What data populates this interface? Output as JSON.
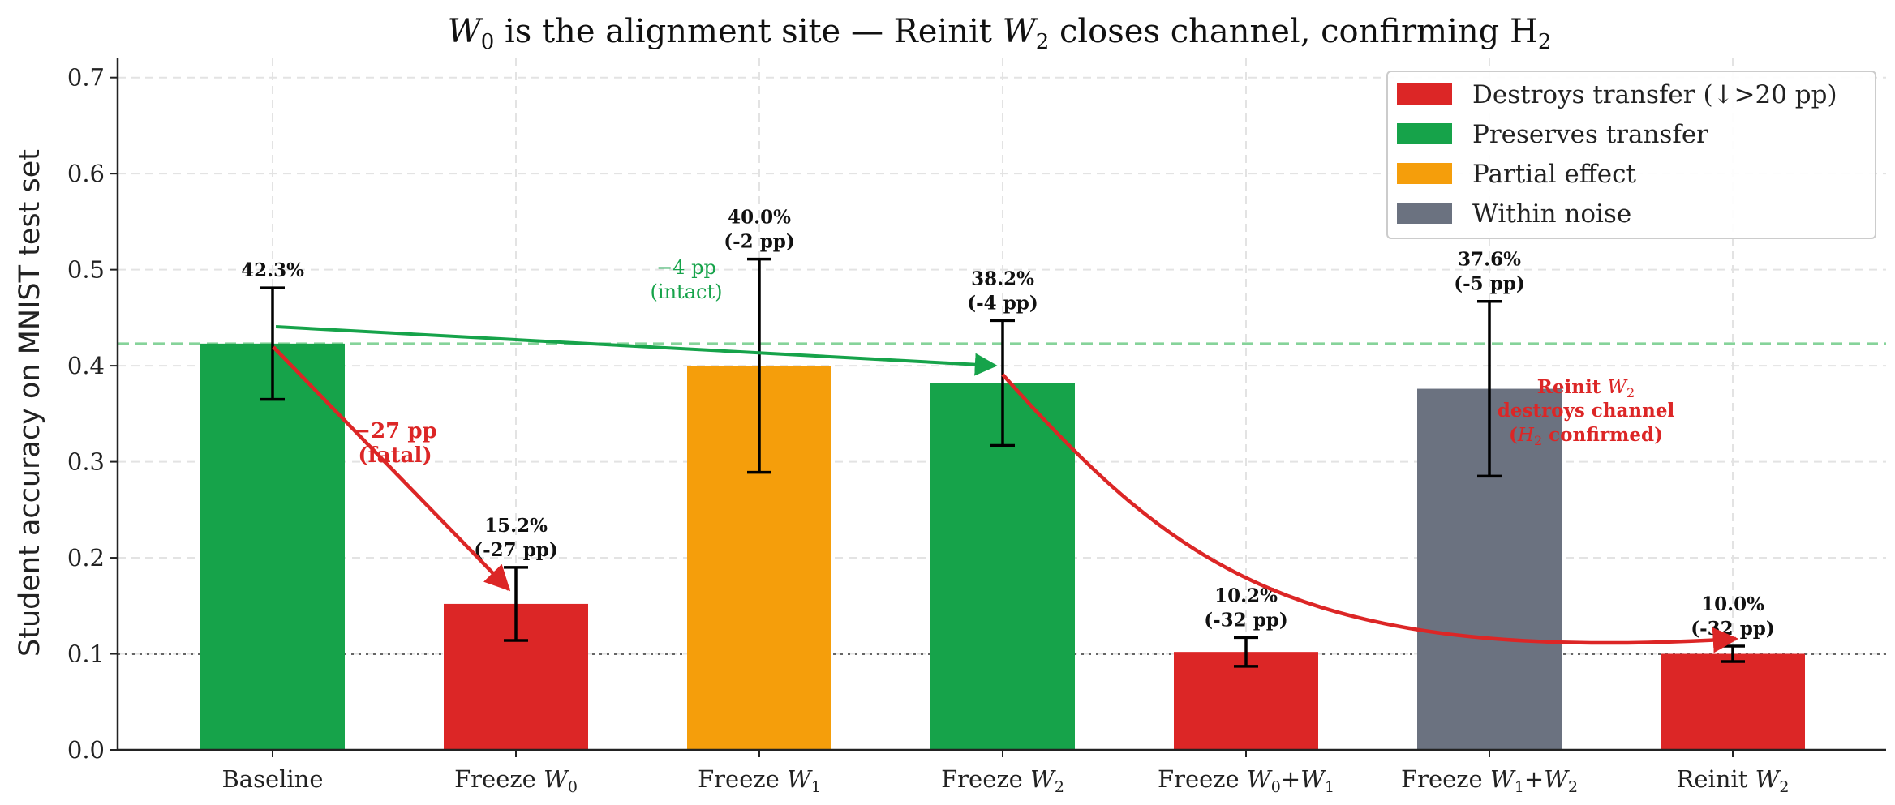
{
  "chart_data": {
    "type": "bar",
    "title_parts": [
      "W",
      "0",
      " is the alignment site — Reinit ",
      "W",
      "2",
      " closes channel, confirming H",
      "2"
    ],
    "ylabel": "Student accuracy on MNIST test set",
    "xlabel": "",
    "ylim": [
      0,
      0.72
    ],
    "yticks": [
      "0.0",
      "0.1",
      "0.2",
      "0.3",
      "0.4",
      "0.5",
      "0.6",
      "0.7"
    ],
    "grid": true,
    "legend_position": "top-right",
    "categories": [
      {
        "prefix": "Baseline",
        "var": "",
        "sub": "",
        "mid": "",
        "var2": "",
        "sub2": ""
      },
      {
        "prefix": "Freeze ",
        "var": "W",
        "sub": "0",
        "mid": "",
        "var2": "",
        "sub2": ""
      },
      {
        "prefix": "Freeze ",
        "var": "W",
        "sub": "1",
        "mid": "",
        "var2": "",
        "sub2": ""
      },
      {
        "prefix": "Freeze ",
        "var": "W",
        "sub": "2",
        "mid": "",
        "var2": "",
        "sub2": ""
      },
      {
        "prefix": "Freeze ",
        "var": "W",
        "sub": "0",
        "mid": "+",
        "var2": "W",
        "sub2": "1"
      },
      {
        "prefix": "Freeze ",
        "var": "W",
        "sub": "1",
        "mid": "+",
        "var2": "W",
        "sub2": "2"
      },
      {
        "prefix": "Reinit ",
        "var": "W",
        "sub": "2",
        "mid": "",
        "var2": "",
        "sub2": ""
      }
    ],
    "values": [
      0.423,
      0.152,
      0.4,
      0.382,
      0.102,
      0.376,
      0.1
    ],
    "errors": [
      0.058,
      0.038,
      0.111,
      0.065,
      0.015,
      0.091,
      0.008
    ],
    "bar_categories": [
      "preserves",
      "destroys",
      "partial",
      "preserves",
      "destroys",
      "noise",
      "destroys"
    ],
    "bar_labels": [
      [
        "42.3%"
      ],
      [
        "15.2%",
        "(-27 pp)"
      ],
      [
        "40.0%",
        "(-2 pp)"
      ],
      [
        "38.2%",
        "(-4 pp)"
      ],
      [
        "10.2%",
        "(-32 pp)"
      ],
      [
        "37.6%",
        "(-5 pp)"
      ],
      [
        "10.0%",
        "(-32 pp)"
      ]
    ],
    "reference_lines": [
      {
        "value": 0.423,
        "style": "dashed",
        "color": "#86d39a"
      },
      {
        "value": 0.1,
        "style": "dotted",
        "color": "#666666"
      }
    ],
    "legend": [
      {
        "key": "destroys",
        "label": "Destroys transfer (↓>20 pp)",
        "color": "#dc2626"
      },
      {
        "key": "preserves",
        "label": "Preserves transfer",
        "color": "#16a34a"
      },
      {
        "key": "partial",
        "label": "Partial effect",
        "color": "#f59e0b"
      },
      {
        "key": "noise",
        "label": "Within noise",
        "color": "#6b7280"
      }
    ],
    "annotations": {
      "green_line1": "−4 pp",
      "green_line2": "(intact)",
      "fatal_line1": "−27 pp",
      "fatal_line2": "(fatal)",
      "reinit_line1_prefix": "Reinit ",
      "reinit_line1_var": "W",
      "reinit_line1_sub": "2",
      "reinit_line2": "destroys channel",
      "reinit_line3_open": "(",
      "reinit_line3_var": "H",
      "reinit_line3_sub": "2",
      "reinit_line3_rest": " confirmed)"
    }
  }
}
